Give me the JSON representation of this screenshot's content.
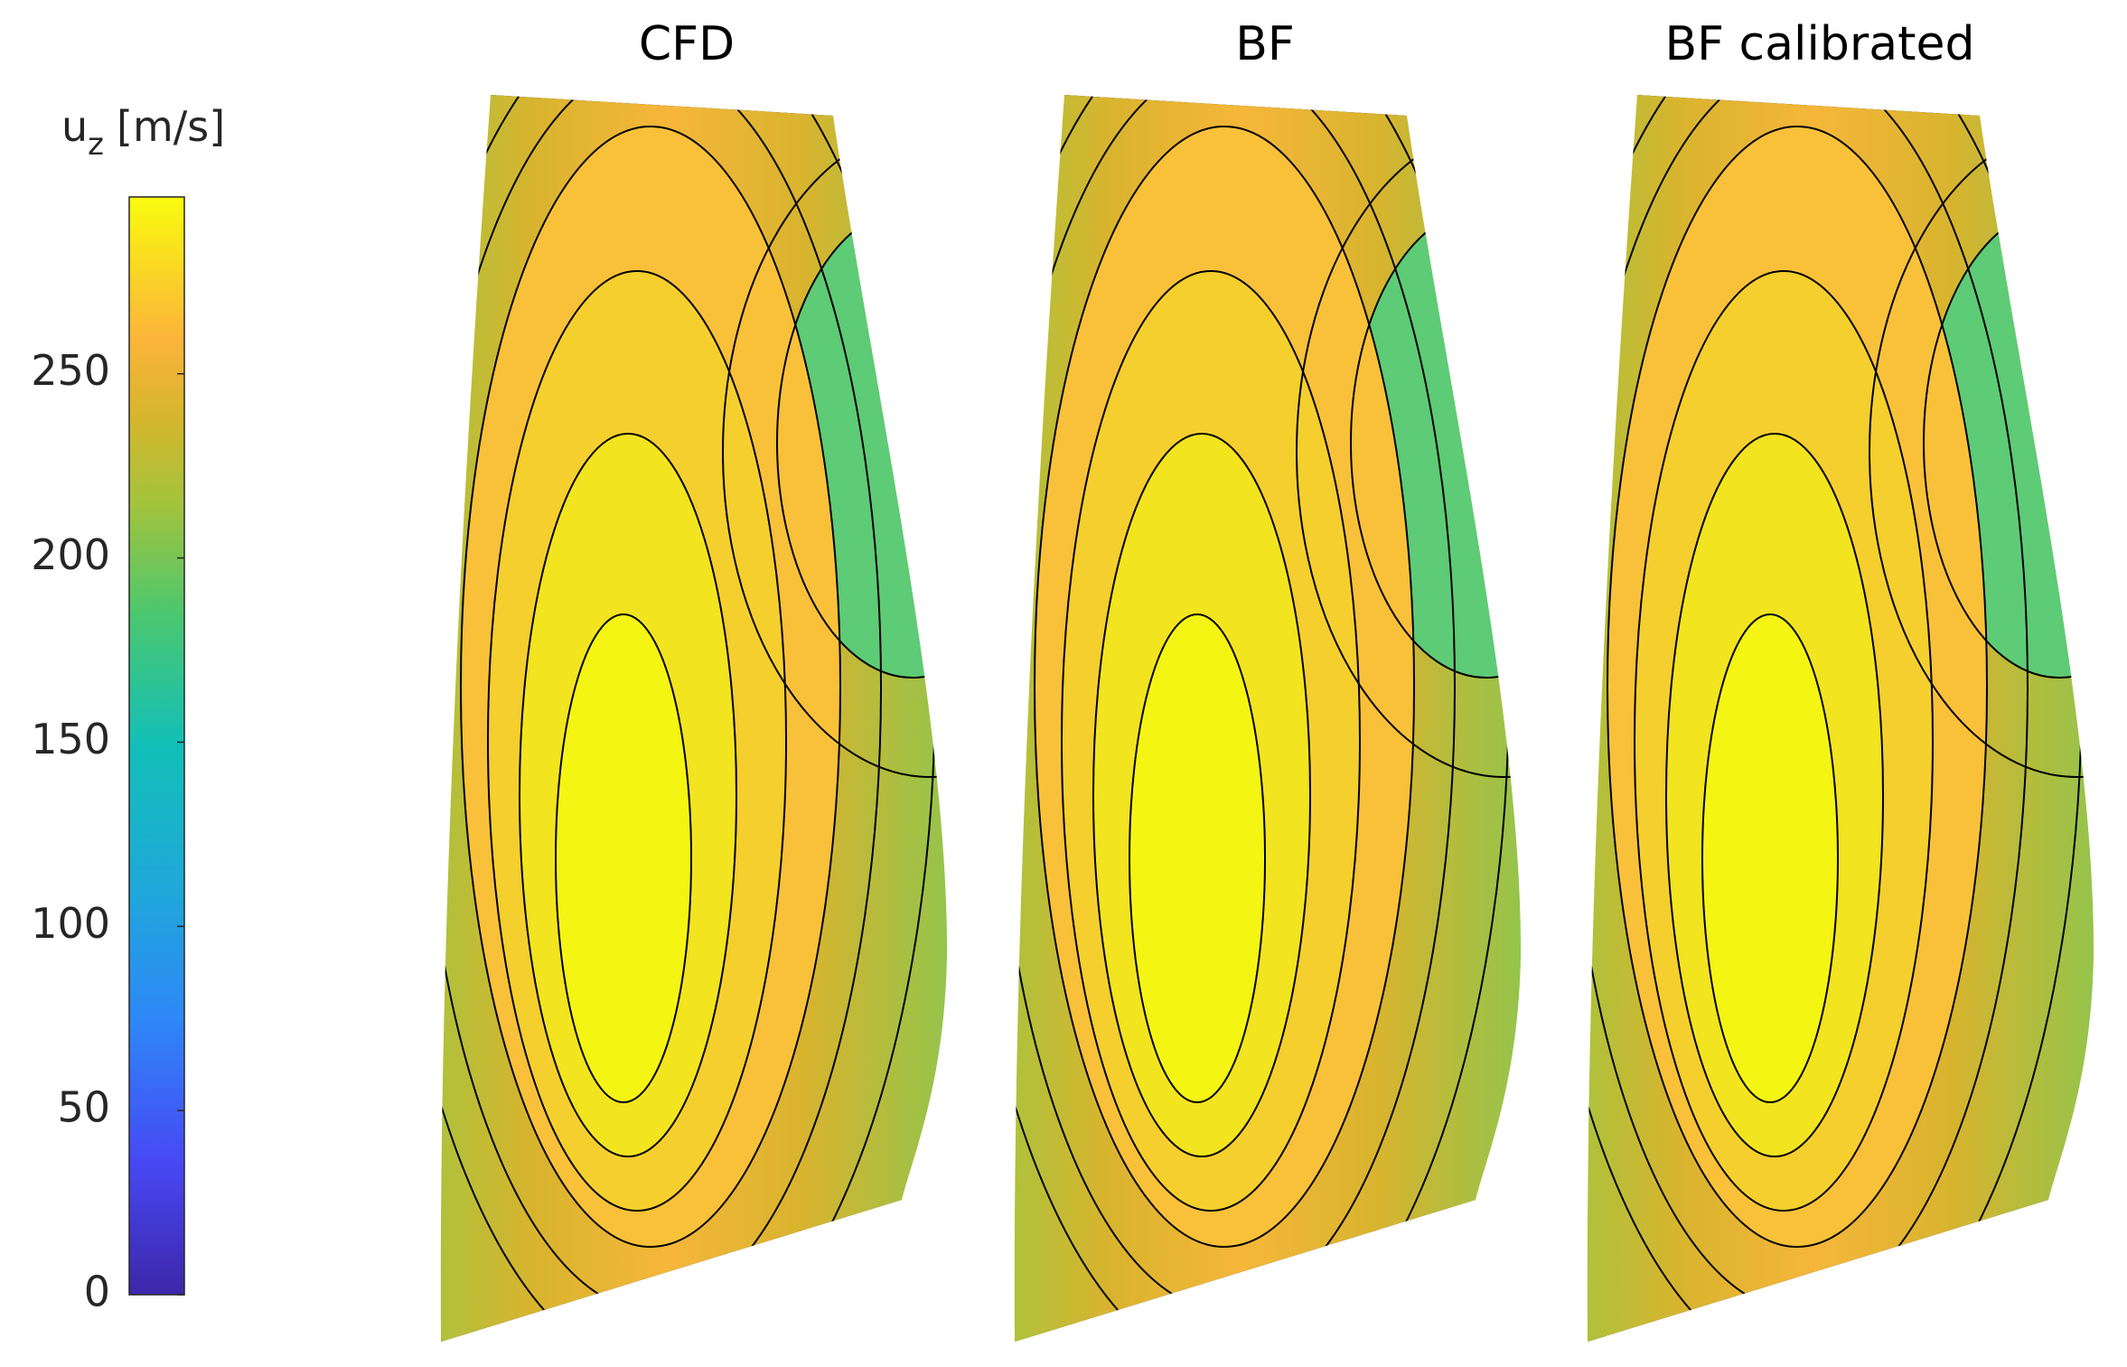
{
  "chart_data": {
    "type": "contour",
    "panels": [
      {
        "title": "CFD"
      },
      {
        "title": "BF"
      },
      {
        "title": "BF calibrated"
      }
    ],
    "colorbar": {
      "label": "u",
      "label_subscript": "z",
      "label_unit": "[m/s]",
      "lim": [
        0,
        298
      ],
      "ticks": [
        0,
        50,
        100,
        150,
        200,
        250
      ]
    }
  }
}
